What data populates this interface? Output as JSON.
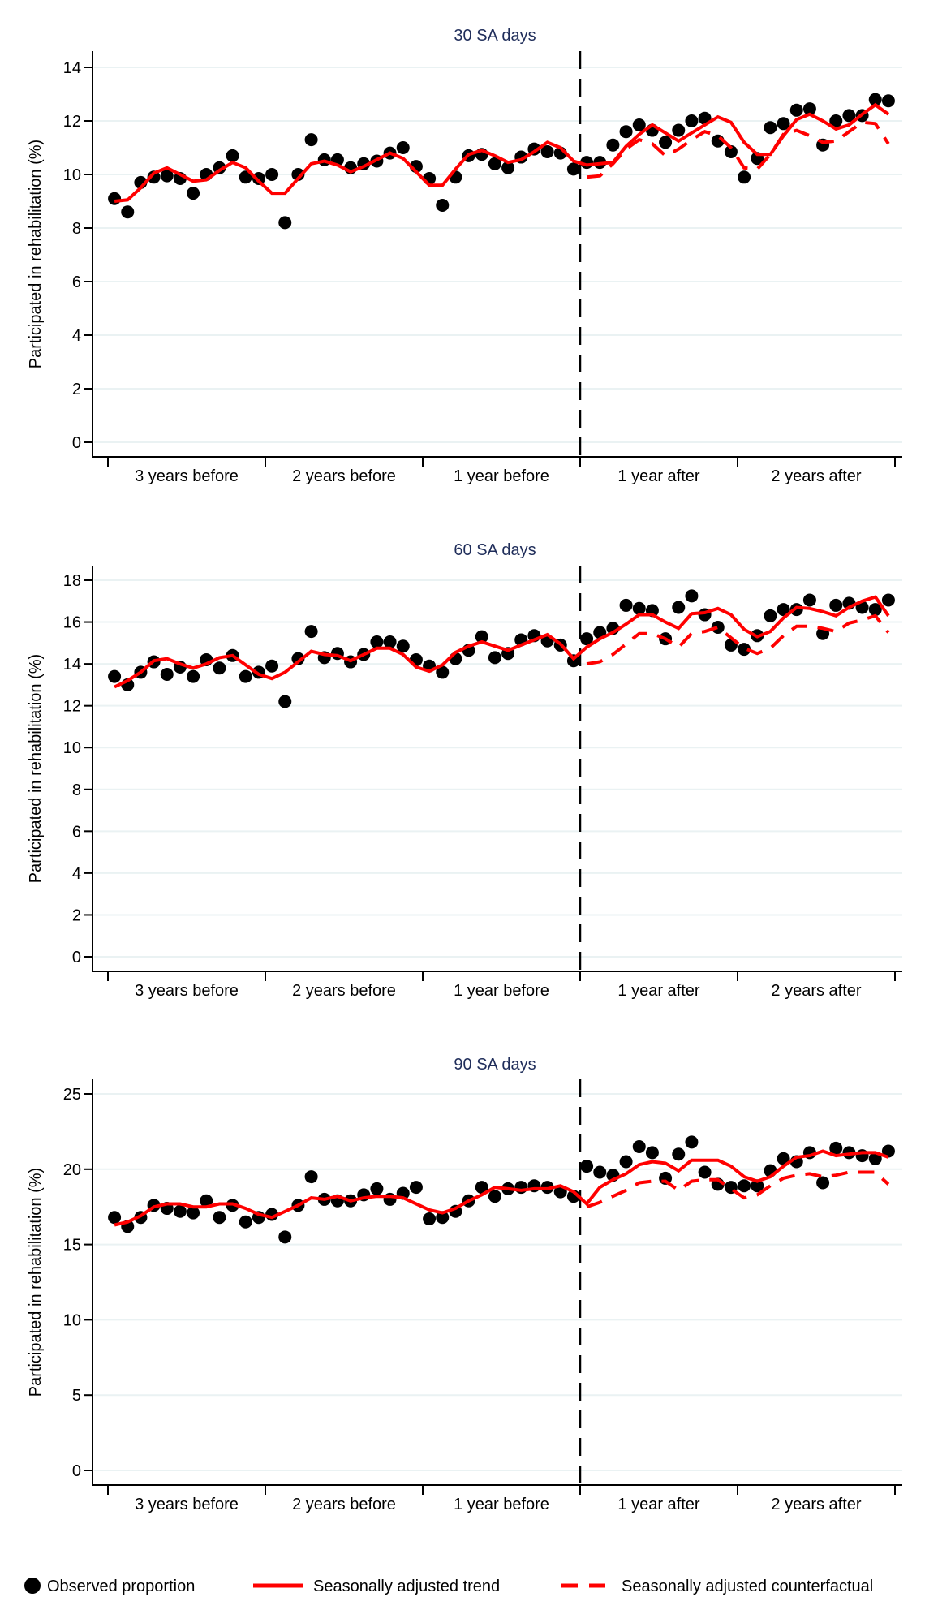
{
  "chart_data": {
    "type": "scatter",
    "layout": "three vertically stacked panels sharing x categories, single legend at bottom",
    "ylabel": "Participated in rehabilitation (%)",
    "x_categories": [
      "3 years before",
      "2 years before",
      "1 year before",
      "1 year after",
      "2 years after"
    ],
    "x_unit": "month",
    "months_per_category": 12,
    "intervention_month_index": 36,
    "intervention_marker": "dashed vertical line at intervention",
    "legend": {
      "position": "bottom",
      "entries": [
        {
          "label": "Observed proportion",
          "marker": "filled-circle",
          "color": "#000000"
        },
        {
          "label": "Seasonally adjusted trend",
          "marker": "solid-line",
          "color": "#ff0000"
        },
        {
          "label": "Seasonally adjusted counterfactual",
          "marker": "dashed-line",
          "color": "#ff0000"
        }
      ]
    },
    "colors": {
      "observed": "#000000",
      "trend": "#ff0000",
      "counterfactual": "#ff0000",
      "title": "#1f2d5a",
      "grid": "#eaf2f3"
    },
    "grid": true,
    "panels": [
      {
        "title": "30 SA days",
        "ylim": [
          0,
          14
        ],
        "yticks": [
          0,
          2,
          4,
          6,
          8,
          10,
          12,
          14
        ],
        "series": [
          {
            "name": "Observed proportion",
            "type": "scatter",
            "start_month": 0,
            "values": [
              9.1,
              8.6,
              9.7,
              9.9,
              9.95,
              9.85,
              9.3,
              10.0,
              10.25,
              10.7,
              9.9,
              9.85,
              10.0,
              8.2,
              10.0,
              11.3,
              10.55,
              10.55,
              10.25,
              10.4,
              10.5,
              10.8,
              11.0,
              10.3,
              9.85,
              8.85,
              9.9,
              10.7,
              10.75,
              10.4,
              10.25,
              10.65,
              10.95,
              10.85,
              10.8,
              10.2,
              10.45,
              10.45,
              11.1,
              11.6,
              11.85,
              11.65,
              11.2,
              11.65,
              12.0,
              12.1,
              11.25,
              10.85,
              9.9,
              10.6,
              11.75,
              11.9,
              12.4,
              12.45,
              11.1,
              12.0,
              12.2,
              12.2,
              12.8,
              12.75
            ]
          },
          {
            "name": "Seasonally adjusted trend",
            "type": "line",
            "start_month": 0,
            "values": [
              9.0,
              9.05,
              9.5,
              10.05,
              10.25,
              10.0,
              9.75,
              9.8,
              10.15,
              10.45,
              10.25,
              9.75,
              9.3,
              9.3,
              9.85,
              10.4,
              10.5,
              10.35,
              10.1,
              10.3,
              10.55,
              10.8,
              10.6,
              10.1,
              9.6,
              9.6,
              10.2,
              10.75,
              10.9,
              10.7,
              10.45,
              10.55,
              10.85,
              11.2,
              11.0,
              10.5,
              10.35,
              10.4,
              10.45,
              11.05,
              11.5,
              11.85,
              11.55,
              11.25,
              11.55,
              11.85,
              12.15,
              11.95,
              11.2,
              10.75,
              10.75,
              11.45,
              12.05,
              12.25,
              12.0,
              11.7,
              11.85,
              12.25,
              12.6,
              12.25
            ]
          },
          {
            "name": "Seasonally adjusted counterfactual",
            "type": "line-dashed",
            "start_month": 36,
            "values": [
              9.9,
              9.95,
              10.4,
              10.95,
              11.3,
              11.15,
              10.7,
              10.95,
              11.3,
              11.6,
              11.45,
              11.0,
              10.25,
              10.2,
              10.75,
              11.5,
              11.65,
              11.45,
              11.2,
              11.25,
              11.6,
              11.95,
              11.9,
              11.15
            ]
          }
        ]
      },
      {
        "title": "60 SA days",
        "ylim": [
          0,
          18
        ],
        "yticks": [
          0,
          2,
          4,
          6,
          8,
          10,
          12,
          14,
          16,
          18
        ],
        "series": [
          {
            "name": "Observed proportion",
            "type": "scatter",
            "start_month": 0,
            "values": [
              13.4,
              13.0,
              13.6,
              14.1,
              13.5,
              13.85,
              13.4,
              14.2,
              13.8,
              14.4,
              13.4,
              13.6,
              13.9,
              12.2,
              14.25,
              15.55,
              14.3,
              14.5,
              14.1,
              14.45,
              15.05,
              15.05,
              14.85,
              14.2,
              13.9,
              13.6,
              14.25,
              14.65,
              15.3,
              14.3,
              14.5,
              15.15,
              15.35,
              15.1,
              14.9,
              14.15,
              15.2,
              15.5,
              15.7,
              16.8,
              16.65,
              16.55,
              15.2,
              16.7,
              17.25,
              16.35,
              15.75,
              14.9,
              14.7,
              15.35,
              16.3,
              16.6,
              16.6,
              17.05,
              15.45,
              16.8,
              16.9,
              16.7,
              16.6,
              17.05
            ]
          },
          {
            "name": "Seasonally adjusted trend",
            "type": "line",
            "start_month": 0,
            "values": [
              12.9,
              13.2,
              13.6,
              14.15,
              14.25,
              14.0,
              13.8,
              14.0,
              14.3,
              14.4,
              13.95,
              13.5,
              13.3,
              13.6,
              14.1,
              14.6,
              14.45,
              14.4,
              14.15,
              14.45,
              14.75,
              14.75,
              14.45,
              13.85,
              13.65,
              13.95,
              14.55,
              14.85,
              15.05,
              14.85,
              14.65,
              14.9,
              15.15,
              15.4,
              14.95,
              14.25,
              14.8,
              15.2,
              15.5,
              15.9,
              16.35,
              16.35,
              16.0,
              15.7,
              16.4,
              16.45,
              16.65,
              16.35,
              15.65,
              15.3,
              15.55,
              16.2,
              16.7,
              16.65,
              16.5,
              16.3,
              16.7,
              17.0,
              17.2,
              16.3
            ]
          },
          {
            "name": "Seasonally adjusted counterfactual",
            "type": "line-dashed",
            "start_month": 36,
            "values": [
              14.0,
              14.1,
              14.45,
              14.95,
              15.45,
              15.45,
              15.2,
              14.8,
              15.45,
              15.55,
              15.75,
              15.25,
              14.75,
              14.5,
              14.75,
              15.35,
              15.8,
              15.8,
              15.7,
              15.55,
              15.95,
              16.1,
              16.3,
              15.5
            ]
          }
        ]
      },
      {
        "title": "90 SA days",
        "ylim": [
          0,
          25
        ],
        "yticks": [
          0,
          5,
          10,
          15,
          20,
          25
        ],
        "series": [
          {
            "name": "Observed proportion",
            "type": "scatter",
            "start_month": 0,
            "values": [
              16.8,
              16.2,
              16.8,
              17.6,
              17.4,
              17.2,
              17.1,
              17.9,
              16.8,
              17.6,
              16.5,
              16.8,
              17.0,
              15.5,
              17.6,
              19.5,
              18.0,
              17.9,
              17.9,
              18.3,
              18.7,
              18.0,
              18.4,
              18.8,
              16.7,
              16.8,
              17.2,
              17.9,
              18.8,
              18.2,
              18.7,
              18.8,
              18.9,
              18.8,
              18.5,
              18.2,
              20.2,
              19.8,
              19.6,
              20.5,
              21.5,
              21.1,
              19.4,
              21.0,
              21.8,
              19.8,
              19.0,
              18.8,
              18.9,
              18.9,
              19.9,
              20.7,
              20.5,
              21.1,
              19.1,
              21.4,
              21.1,
              20.9,
              20.7,
              21.2
            ]
          },
          {
            "name": "Seasonally adjusted trend",
            "type": "line",
            "start_month": 0,
            "values": [
              16.3,
              16.5,
              16.9,
              17.5,
              17.7,
              17.7,
              17.5,
              17.5,
              17.7,
              17.7,
              17.4,
              17.0,
              16.8,
              17.2,
              17.6,
              18.1,
              18.0,
              18.2,
              17.9,
              18.1,
              18.2,
              18.2,
              18.1,
              17.7,
              17.3,
              17.1,
              17.4,
              17.9,
              18.3,
              18.8,
              18.7,
              18.6,
              18.7,
              18.7,
              18.9,
              18.5,
              17.7,
              18.8,
              19.3,
              19.7,
              20.3,
              20.5,
              20.4,
              19.9,
              20.6,
              20.6,
              20.6,
              20.2,
              19.5,
              19.2,
              19.5,
              20.2,
              20.8,
              20.9,
              21.2,
              20.9,
              21.0,
              21.1,
              21.1,
              20.8
            ]
          },
          {
            "name": "Seasonally adjusted counterfactual",
            "type": "line-dashed",
            "start_month": 36,
            "values": [
              17.5,
              17.8,
              18.2,
              18.6,
              19.1,
              19.2,
              19.2,
              18.6,
              19.2,
              19.3,
              19.3,
              18.7,
              18.1,
              18.3,
              18.9,
              19.4,
              19.6,
              19.7,
              19.5,
              19.6,
              19.8,
              19.8,
              19.8,
              19.0
            ]
          }
        ]
      }
    ]
  }
}
